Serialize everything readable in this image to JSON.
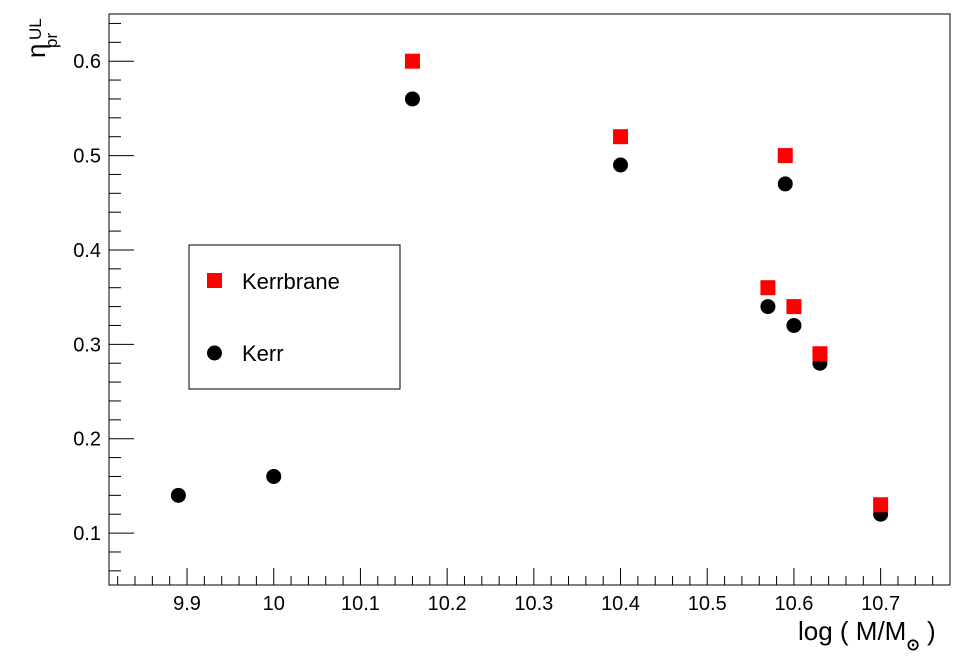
{
  "chart_data": {
    "type": "scatter",
    "xlabel": {
      "main": "log ( M/M",
      "suffix": " )",
      "subscript": "⊙"
    },
    "ylabel": {
      "main": "η",
      "superscript": "UL",
      "subscript": "pr"
    },
    "xlim": [
      9.81,
      10.78
    ],
    "ylim": [
      0.045,
      0.65
    ],
    "x_ticks": [
      "9.9",
      "10",
      "10.1",
      "10.2",
      "10.3",
      "10.4",
      "10.5",
      "10.6",
      "10.7"
    ],
    "y_ticks": [
      "0.1",
      "0.2",
      "0.3",
      "0.4",
      "0.5",
      "0.6"
    ],
    "legend_position": "middle-left",
    "series": [
      {
        "name": "Kerrbrane",
        "marker": "square",
        "color": "#ff0000",
        "points": [
          {
            "x": 10.16,
            "y": 0.6
          },
          {
            "x": 10.4,
            "y": 0.52
          },
          {
            "x": 10.59,
            "y": 0.5
          },
          {
            "x": 10.57,
            "y": 0.36
          },
          {
            "x": 10.6,
            "y": 0.34
          },
          {
            "x": 10.63,
            "y": 0.29
          },
          {
            "x": 10.7,
            "y": 0.13
          }
        ]
      },
      {
        "name": "Kerr",
        "marker": "circle",
        "color": "#000000",
        "points": [
          {
            "x": 9.89,
            "y": 0.14
          },
          {
            "x": 10.0,
            "y": 0.16
          },
          {
            "x": 10.16,
            "y": 0.56
          },
          {
            "x": 10.4,
            "y": 0.49
          },
          {
            "x": 10.59,
            "y": 0.47
          },
          {
            "x": 10.57,
            "y": 0.34
          },
          {
            "x": 10.6,
            "y": 0.32
          },
          {
            "x": 10.63,
            "y": 0.28
          },
          {
            "x": 10.7,
            "y": 0.12
          }
        ]
      }
    ]
  }
}
